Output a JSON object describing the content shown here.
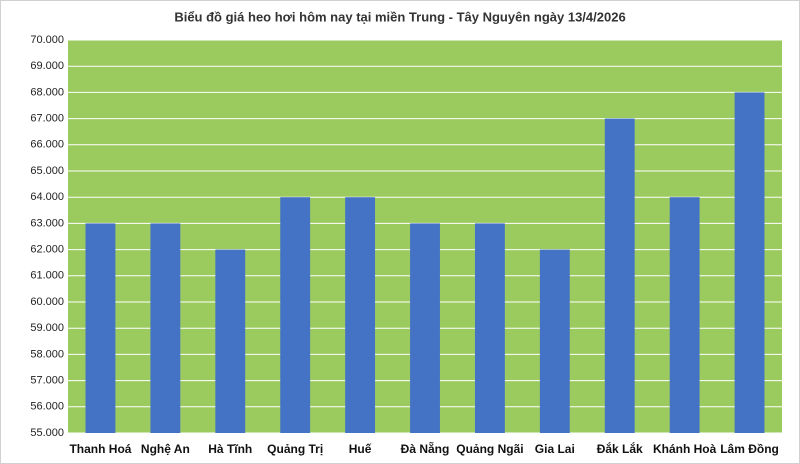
{
  "chart_data": {
    "type": "bar",
    "title": "Biểu đồ giá heo hơi hôm nay tại miền Trung - Tây Nguyên ngày 13/4/2026",
    "categories": [
      "Thanh Hoá",
      "Nghệ An",
      "Hà Tĩnh",
      "Quảng Trị",
      "Huế",
      "Đà Nẵng",
      "Quảng Ngãi",
      "Gia Lai",
      "Đắk Lắk",
      "Khánh Hoà",
      "Lâm Đồng"
    ],
    "values": [
      63000,
      63000,
      62000,
      64000,
      64000,
      63000,
      63000,
      62000,
      67000,
      64000,
      68000
    ],
    "color": "#4472c4",
    "plot_background": "#9bcb5f",
    "ylim": [
      55000,
      70000
    ],
    "yticks": [
      {
        "value": 55000,
        "label": "55.000"
      },
      {
        "value": 56000,
        "label": "56.000"
      },
      {
        "value": 57000,
        "label": "57.000"
      },
      {
        "value": 58000,
        "label": "58.000"
      },
      {
        "value": 59000,
        "label": "59.000"
      },
      {
        "value": 60000,
        "label": "60.000"
      },
      {
        "value": 61000,
        "label": "61.000"
      },
      {
        "value": 62000,
        "label": "62.000"
      },
      {
        "value": 63000,
        "label": "63.000"
      },
      {
        "value": 64000,
        "label": "64.000"
      },
      {
        "value": 65000,
        "label": "65.000"
      },
      {
        "value": 66000,
        "label": "66.000"
      },
      {
        "value": 67000,
        "label": "67.000"
      },
      {
        "value": 68000,
        "label": "68.000"
      },
      {
        "value": 69000,
        "label": "69.000"
      },
      {
        "value": 70000,
        "label": "70.000"
      }
    ],
    "grid": true
  }
}
